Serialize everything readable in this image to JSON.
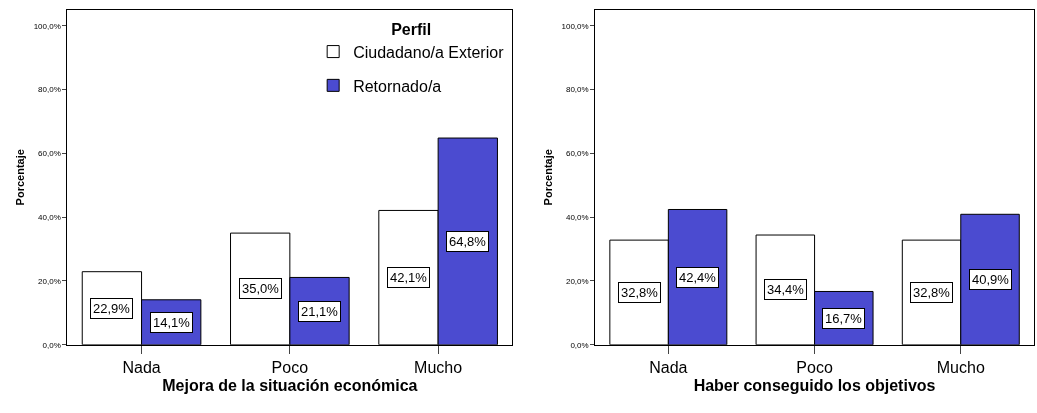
{
  "chart_data": [
    {
      "type": "bar",
      "xlabel": "Mejora de la situación económica",
      "ylabel": "Porcentaje",
      "legend_title": "Perfil",
      "legend": "top right",
      "categories": [
        "Nada",
        "Poco",
        "Mucho"
      ],
      "series": [
        {
          "name": "Ciudadano/a Exterior",
          "color": "#ffffff",
          "values": [
            22.9,
            35.0,
            42.1
          ],
          "value_labels": [
            "22,9%",
            "35,0%",
            "42,1%"
          ]
        },
        {
          "name": "Retornado/a",
          "color": "#4b4bd0",
          "values": [
            14.1,
            21.1,
            64.8
          ],
          "value_labels": [
            "14,1%",
            "21,1%",
            "64,8%"
          ]
        }
      ],
      "ylim": [
        0,
        105
      ],
      "yticks": [
        {
          "value": 0,
          "label": "0,0%"
        },
        {
          "value": 20,
          "label": "20,0%"
        },
        {
          "value": 40,
          "label": "40,0%"
        },
        {
          "value": 60,
          "label": "60,0%"
        },
        {
          "value": 80,
          "label": "80,0%"
        },
        {
          "value": 100,
          "label": "100,0%"
        }
      ]
    },
    {
      "type": "bar",
      "xlabel": "Haber conseguido los objetivos",
      "ylabel": "Porcentaje",
      "categories": [
        "Nada",
        "Poco",
        "Mucho"
      ],
      "series": [
        {
          "color": "#ffffff",
          "values": [
            32.8,
            34.4,
            32.8
          ],
          "value_labels": [
            "32,8%",
            "34,4%",
            "32,8%"
          ]
        },
        {
          "color": "#4b4bd0",
          "values": [
            42.4,
            16.7,
            40.9
          ],
          "value_labels": [
            "42,4%",
            "16,7%",
            "40,9%"
          ]
        }
      ],
      "ylim": [
        0,
        105
      ],
      "yticks": [
        {
          "value": 0,
          "label": "0,0%"
        },
        {
          "value": 20,
          "label": "20,0%"
        },
        {
          "value": 40,
          "label": "40,0%"
        },
        {
          "value": 60,
          "label": "60,0%"
        },
        {
          "value": 80,
          "label": "80,0%"
        },
        {
          "value": 100,
          "label": "100,0%"
        }
      ]
    }
  ]
}
